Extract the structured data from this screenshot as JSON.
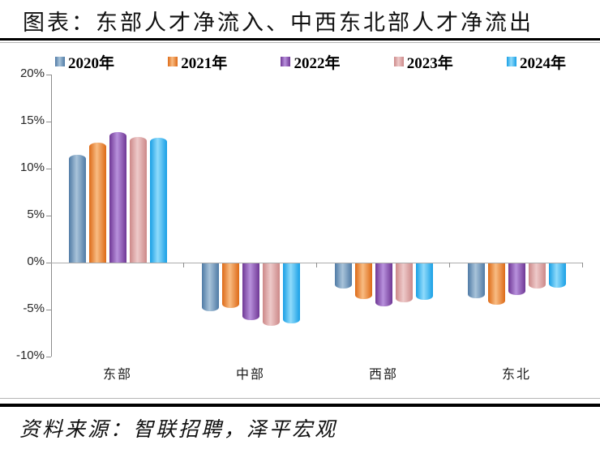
{
  "title": "图表：东部人才净流入、中西东北部人才净流出",
  "source": "资料来源：智联招聘，泽平宏观",
  "colors": {
    "series_2020_dark": "#4f7aa5",
    "series_2020_light": "#a9c4da",
    "series_2021_dark": "#dd6a17",
    "series_2021_light": "#f8bc83",
    "series_2022_dark": "#6f3795",
    "series_2022_light": "#b891dc",
    "series_2023_dark": "#cc8888",
    "series_2023_light": "#eecaca",
    "series_2024_dark": "#189fe5",
    "series_2024_light": "#90dbfb",
    "axis_line": "#8c8c8c",
    "zero_line": "#ababab",
    "rule_black": "#000000",
    "rule_gray": "#b5b5b5"
  },
  "chart_data": {
    "type": "bar",
    "title": "图表：东部人才净流入、中西东北部人才净流出",
    "categories": [
      "东部",
      "中部",
      "西部",
      "东北"
    ],
    "series": [
      {
        "name": "2020年",
        "values": [
          11.5,
          -5.1,
          -2.7,
          -3.7
        ],
        "color_dark": "#4f7aa5",
        "color_light": "#a9c4da"
      },
      {
        "name": "2021年",
        "values": [
          12.8,
          -4.7,
          -3.8,
          -4.4
        ],
        "color_dark": "#dd6a17",
        "color_light": "#f8bc83"
      },
      {
        "name": "2022年",
        "values": [
          13.9,
          -6.0,
          -4.6,
          -3.4
        ],
        "color_dark": "#6f3795",
        "color_light": "#b891dc"
      },
      {
        "name": "2023年",
        "values": [
          13.4,
          -6.6,
          -4.1,
          -2.7
        ],
        "color_dark": "#cc8888",
        "color_light": "#eecaca"
      },
      {
        "name": "2024年",
        "values": [
          13.3,
          -6.4,
          -3.9,
          -2.6
        ],
        "color_dark": "#189fe5",
        "color_light": "#90dbfb"
      }
    ],
    "ylim": [
      -10,
      20
    ],
    "ytick_step": 5,
    "ytick_labels": [
      "20%",
      "15%",
      "10%",
      "5%",
      "0%",
      "-5%",
      "-10%"
    ],
    "xlabel": "",
    "ylabel": "",
    "legend_position": "top",
    "grid": false,
    "unit": "percent"
  }
}
